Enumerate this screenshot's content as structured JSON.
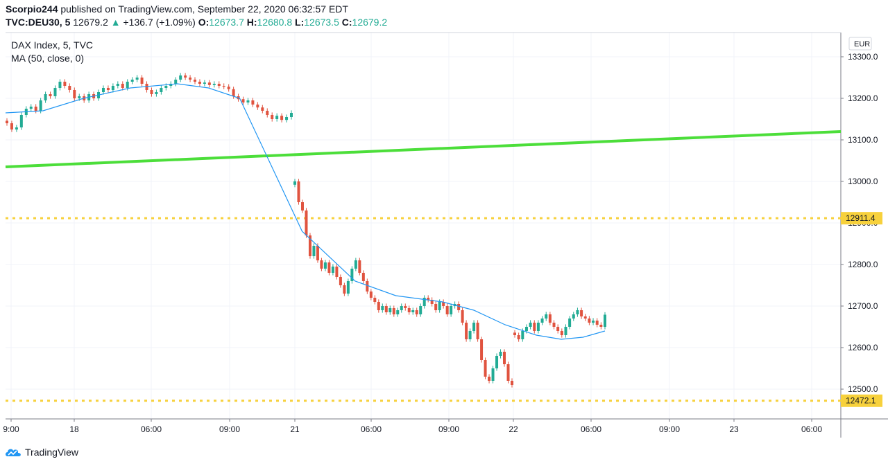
{
  "header": {
    "publisher": "Scorpio244",
    "published_text": "published on TradingView.com, September 22, 2020 06:32:57 EDT",
    "symbol": "TVC:DEU30, 5",
    "last": "12679.2",
    "change": "+136.7 (+1.09%)",
    "o_label": "O:",
    "o_value": "12673.7",
    "h_label": "H:",
    "h_value": "12680.8",
    "l_label": "L:",
    "l_value": "12673.5",
    "c_label": "C:",
    "c_value": "12679.2"
  },
  "legend": {
    "title": "DAX Index, 5, TVC",
    "ma": "MA (50, close, 0)"
  },
  "colors": {
    "up": "#22ab94",
    "down": "#e0533f",
    "ma": "#2196f3",
    "trendline": "#4cde3a",
    "hline": "#f7d13c",
    "grid": "#f0f3fa"
  },
  "footer": {
    "brand": "TradingView"
  },
  "chart_data": {
    "type": "candlestick",
    "title": "DAX Index, 5, TVC",
    "currency": "EUR",
    "y_ticks": [
      13300,
      13200,
      13100,
      13000,
      12900,
      12800,
      12700,
      12600,
      12500
    ],
    "x_ticks": [
      "9:00",
      "18",
      "06:00",
      "09:00",
      "21",
      "06:00",
      "09:00",
      "22",
      "06:00",
      "09:00",
      "23",
      "06:00"
    ],
    "price_labels": [
      {
        "value": 12911.4,
        "label": "12911.4"
      },
      {
        "value": 12472.1,
        "label": "12472.1"
      }
    ],
    "horizontal_lines": [
      12911.4,
      12472.1
    ],
    "grid": true,
    "segments": [
      {
        "session": "Sep 18",
        "closes": [
          13140,
          13125,
          13130,
          13160,
          13175,
          13180,
          13170,
          13195,
          13210,
          13205,
          13225,
          13240,
          13230,
          13220,
          13200,
          13205,
          13195,
          13210,
          13200,
          13215,
          13225,
          13220,
          13230,
          13235,
          13225,
          13240,
          13245,
          13250,
          13235,
          13220,
          13210,
          13215,
          13225,
          13230,
          13235,
          13245,
          13255,
          13250,
          13245,
          13240,
          13235,
          13238,
          13232,
          13235,
          13230,
          13228,
          13222,
          13205,
          13198,
          13190,
          13195,
          13185,
          13178,
          13170,
          13160,
          13150,
          13158,
          13148,
          13155,
          13165
        ]
      },
      {
        "session": "Sep 21",
        "closes": [
          13000,
          12950,
          12930,
          12870,
          12820,
          12845,
          12810,
          12790,
          12805,
          12780,
          12795,
          12770,
          12750,
          12730,
          12760,
          12790,
          12810,
          12780,
          12760,
          12735,
          12720,
          12710,
          12690,
          12700,
          12685,
          12695,
          12680,
          12690,
          12700,
          12695,
          12685,
          12690,
          12680,
          12700,
          12720,
          12715,
          12705,
          12690,
          12710,
          12700,
          12680,
          12700,
          12705,
          12690,
          12660,
          12620,
          12640,
          12660,
          12620,
          12570,
          12530,
          12520,
          12550,
          12580,
          12590,
          12560,
          12520,
          12510
        ]
      },
      {
        "session": "Sep 22",
        "closes": [
          12630,
          12620,
          12640,
          12650,
          12660,
          12640,
          12660,
          12670,
          12680,
          12660,
          12650,
          12640,
          12630,
          12650,
          12670,
          12680,
          12690,
          12675,
          12670,
          12660,
          12665,
          12655,
          12650,
          12679.2
        ]
      }
    ],
    "moving_average": {
      "name": "MA (50, close, 0)",
      "points": [
        {
          "t": 0,
          "v": 13165
        },
        {
          "t": 12,
          "v": 13170
        },
        {
          "t": 25,
          "v": 13200
        },
        {
          "t": 40,
          "v": 13225
        },
        {
          "t": 55,
          "v": 13235
        },
        {
          "t": 65,
          "v": 13225
        },
        {
          "t": 75,
          "v": 13200
        },
        {
          "t": 95,
          "v": 12880
        },
        {
          "t": 112,
          "v": 12760
        },
        {
          "t": 125,
          "v": 12725
        },
        {
          "t": 140,
          "v": 12710
        },
        {
          "t": 150,
          "v": 12690
        },
        {
          "t": 160,
          "v": 12655
        },
        {
          "t": 170,
          "v": 12630
        },
        {
          "t": 178,
          "v": 12620
        },
        {
          "t": 185,
          "v": 12625
        },
        {
          "t": 192,
          "v": 12640
        }
      ]
    },
    "trend_line": {
      "start": 13035,
      "end": 13120
    }
  }
}
